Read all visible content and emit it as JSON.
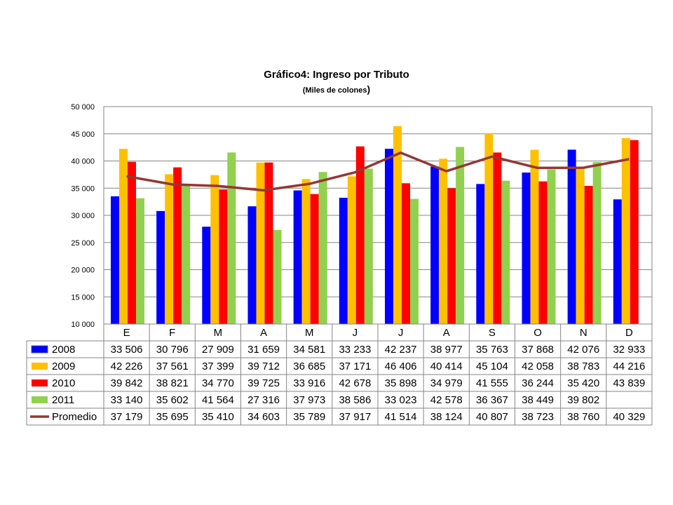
{
  "chart_data": {
    "type": "bar",
    "title": "Gráfico4: Ingreso por Tributo",
    "subtitle": "(Miles de colones",
    "subtitle_close": ")",
    "categories": [
      "E",
      "F",
      "M",
      "A",
      "M",
      "J",
      "J",
      "A",
      "S",
      "O",
      "N",
      "D"
    ],
    "ylim": [
      10000,
      50000
    ],
    "yticks": [
      10000,
      15000,
      20000,
      25000,
      30000,
      35000,
      40000,
      45000,
      50000
    ],
    "ytick_labels": [
      "10 000",
      "15 000",
      "20 000",
      "25 000",
      "30 000",
      "35 000",
      "40 000",
      "45 000",
      "50 000"
    ],
    "grid": true,
    "legend_placement": "data-table-left",
    "series": [
      {
        "name": "2008",
        "type": "bar",
        "color": "#0000ff",
        "values": [
          33506,
          30796,
          27909,
          31659,
          34581,
          33233,
          42237,
          38977,
          35763,
          37868,
          42076,
          32933
        ],
        "labels": [
          "33 506",
          "30 796",
          "27 909",
          "31 659",
          "34 581",
          "33 233",
          "42 237",
          "38 977",
          "35 763",
          "37 868",
          "42 076",
          "32 933"
        ]
      },
      {
        "name": "2009",
        "type": "bar",
        "color": "#ffc000",
        "values": [
          42226,
          37561,
          37399,
          39712,
          36685,
          37171,
          46406,
          40414,
          45104,
          42058,
          38783,
          44216
        ],
        "labels": [
          "42 226",
          "37 561",
          "37 399",
          "39 712",
          "36 685",
          "37 171",
          "46 406",
          "40 414",
          "45 104",
          "42 058",
          "38 783",
          "44 216"
        ]
      },
      {
        "name": "2010",
        "type": "bar",
        "color": "#ff0000",
        "values": [
          39842,
          38821,
          34770,
          39725,
          33916,
          42678,
          35898,
          34979,
          41555,
          36244,
          35420,
          43839
        ],
        "labels": [
          "39 842",
          "38 821",
          "34 770",
          "39 725",
          "33 916",
          "42 678",
          "35 898",
          "34 979",
          "41 555",
          "36 244",
          "35 420",
          "43 839"
        ]
      },
      {
        "name": "2011",
        "type": "bar",
        "color": "#92d050",
        "values": [
          33140,
          35602,
          41564,
          27316,
          37973,
          38586,
          33023,
          42578,
          36367,
          38449,
          39802,
          null
        ],
        "labels": [
          "33 140",
          "35 602",
          "41 564",
          "27 316",
          "37 973",
          "38 586",
          "33 023",
          "42 578",
          "36 367",
          "38 449",
          "39 802",
          ""
        ]
      },
      {
        "name": "Promedio",
        "type": "line",
        "color": "#953735",
        "values": [
          37179,
          35695,
          35410,
          34603,
          35789,
          37917,
          41514,
          38124,
          40807,
          38723,
          38760,
          40329
        ],
        "labels": [
          "37 179",
          "35 695",
          "35 410",
          "34 603",
          "35 789",
          "37 917",
          "41 514",
          "38 124",
          "40 807",
          "38 723",
          "38 760",
          "40 329"
        ]
      }
    ]
  }
}
